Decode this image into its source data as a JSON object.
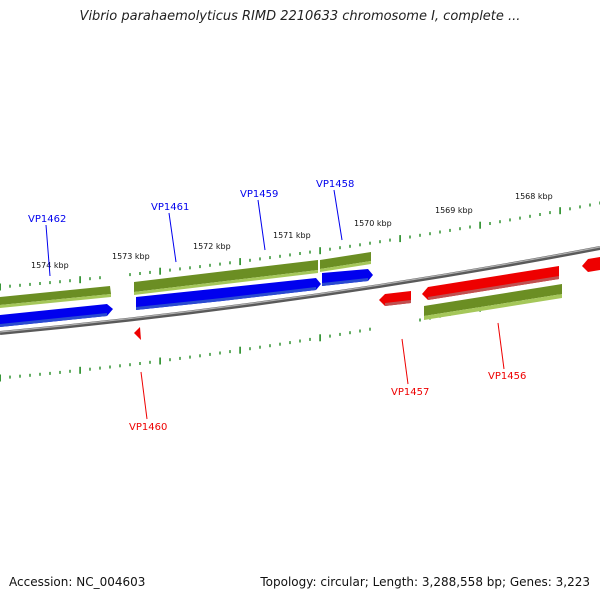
{
  "title": "Vibrio parahaemolyticus RIMD 2210633 chromosome I, complete ...",
  "footer": {
    "accession": "Accession: NC_004603",
    "summary": "Topology: circular; Length: 3,288,558 bp; Genes: 3,223"
  },
  "colors": {
    "plus_strand_gene": "#0000ee",
    "minus_strand_gene": "#ee0000",
    "cds_bar": "#6b8e23",
    "backbone": "#808080",
    "tick": "#228b22"
  },
  "ruler_labels": [
    "1574 kbp",
    "1573 kbp",
    "1572 kbp",
    "1571 kbp",
    "1570 kbp",
    "1569 kbp",
    "1568 kbp"
  ],
  "genes": [
    {
      "name": "VP1462",
      "strand": "+"
    },
    {
      "name": "VP1461",
      "strand": "+"
    },
    {
      "name": "VP1459",
      "strand": "+"
    },
    {
      "name": "VP1458",
      "strand": "+"
    },
    {
      "name": "VP1460",
      "strand": "-"
    },
    {
      "name": "VP1457",
      "strand": "-"
    },
    {
      "name": "VP1456",
      "strand": "-"
    }
  ]
}
